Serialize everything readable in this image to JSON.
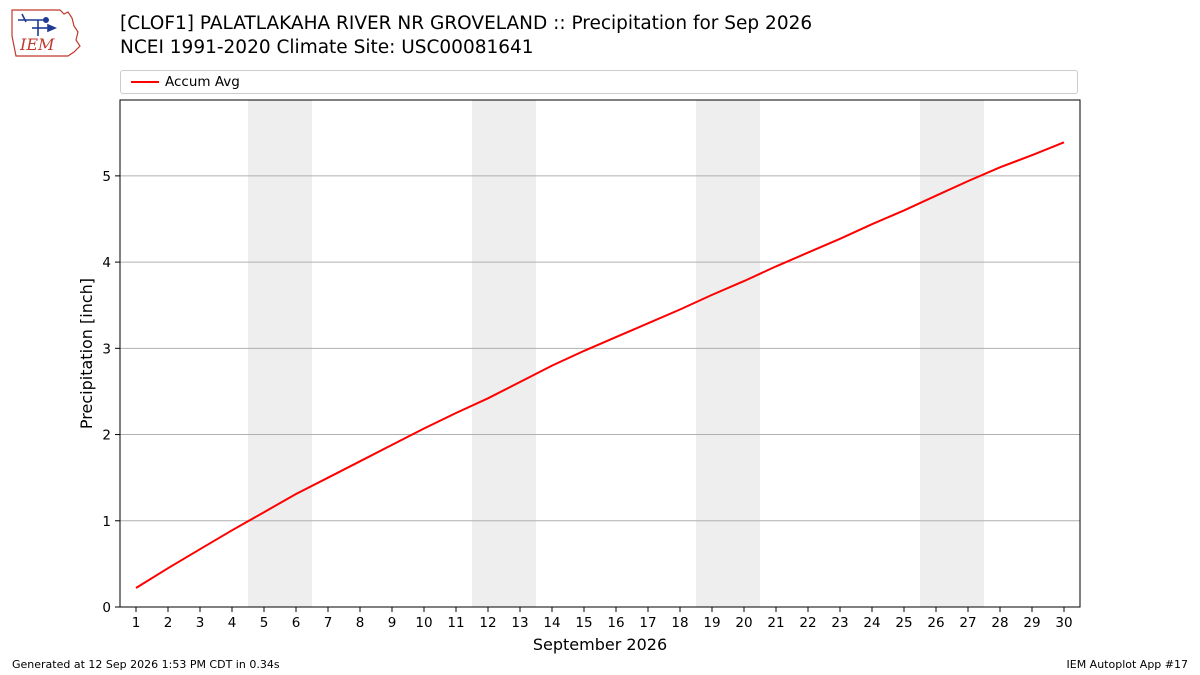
{
  "logo": {
    "text": "IEM"
  },
  "title": {
    "line1": "[CLOF1] PALATLAKAHA RIVER NR GROVELAND :: Precipitation for Sep 2026",
    "line2": "NCEI 1991-2020 Climate Site: USC00081641"
  },
  "footer": {
    "generated": "Generated at 12 Sep 2026 1:53 PM CDT in 0.34s",
    "app": "IEM Autoplot App #17"
  },
  "colors": {
    "series": "#ff0000",
    "weekend": "#eeeeee",
    "grid": "#b0b0b0"
  },
  "chart_data": {
    "type": "line",
    "xlabel": "September 2026",
    "ylabel": "Precipitation [inch]",
    "xlim": [
      0.5,
      30.5
    ],
    "ylim": [
      0,
      5.88
    ],
    "yticks": [
      0,
      1,
      2,
      3,
      4,
      5
    ],
    "grid": "horizontal",
    "legend_position": "top",
    "shaded_weekend_days": [
      [
        5,
        6
      ],
      [
        12,
        13
      ],
      [
        19,
        20
      ],
      [
        26,
        27
      ]
    ],
    "x": [
      1,
      2,
      3,
      4,
      5,
      6,
      7,
      8,
      9,
      10,
      11,
      12,
      13,
      14,
      15,
      16,
      17,
      18,
      19,
      20,
      21,
      22,
      23,
      24,
      25,
      26,
      27,
      28,
      29,
      30
    ],
    "series": [
      {
        "name": "Accum Avg",
        "color": "#ff0000",
        "values": [
          0.22,
          0.45,
          0.67,
          0.89,
          1.1,
          1.31,
          1.5,
          1.69,
          1.88,
          2.07,
          2.25,
          2.42,
          2.61,
          2.8,
          2.97,
          3.13,
          3.29,
          3.45,
          3.62,
          3.78,
          3.95,
          4.11,
          4.27,
          4.44,
          4.6,
          4.77,
          4.94,
          5.1,
          5.24,
          5.39
        ]
      }
    ]
  }
}
